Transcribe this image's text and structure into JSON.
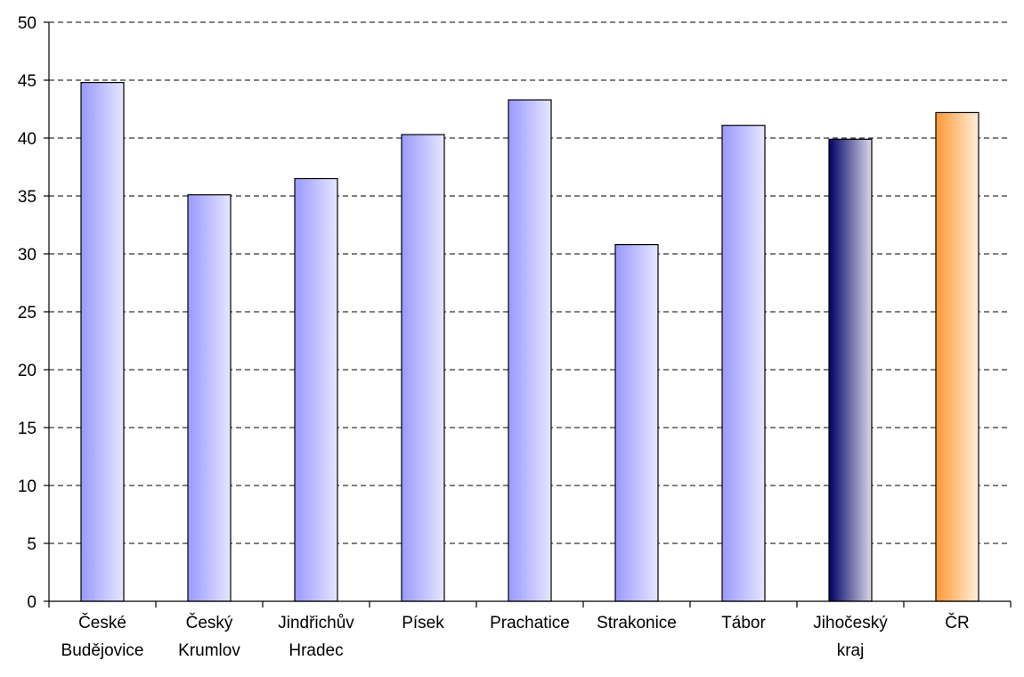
{
  "chart_data": {
    "type": "bar",
    "title": "",
    "xlabel": "",
    "ylabel": "",
    "ylim": [
      0,
      50
    ],
    "yticks": [
      0,
      5,
      10,
      15,
      20,
      25,
      30,
      35,
      40,
      45,
      50
    ],
    "grid": "horizontal dashed",
    "legend": "none",
    "categories": [
      [
        "České",
        "Budějovice"
      ],
      [
        "Český",
        "Krumlov"
      ],
      [
        "Jindřichův",
        "Hradec"
      ],
      [
        "Písek"
      ],
      [
        "Prachatice"
      ],
      [
        "Strakonice"
      ],
      [
        "Tábor"
      ],
      [
        "Jihočeský",
        "kraj"
      ],
      [
        "ČR"
      ]
    ],
    "values": [
      44.8,
      35.1,
      36.5,
      40.3,
      43.3,
      30.8,
      41.1,
      39.9,
      42.2
    ],
    "bar_colors": [
      "#9999ff",
      "#9999ff",
      "#9999ff",
      "#9999ff",
      "#9999ff",
      "#9999ff",
      "#9999ff",
      "#000066",
      "#ff9933"
    ]
  }
}
